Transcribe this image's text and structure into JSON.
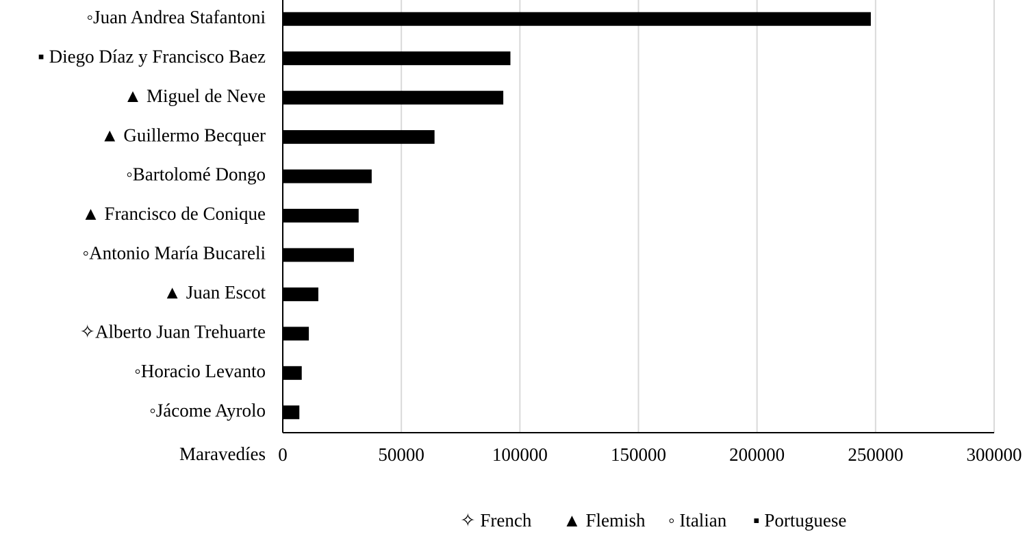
{
  "chart_data": {
    "type": "barh",
    "categories": [
      "◦Juan Andrea Stafantoni",
      "▪ Diego Díaz y Francisco Baez",
      "▲ Miguel de Neve",
      "▲ Guillermo Becquer",
      "◦Bartolomé Dongo",
      "▲ Francisco de Conique",
      "◦Antonio María Bucareli",
      "▲ Juan Escot",
      "✧Alberto Juan Trehuarte",
      "◦Horacio Levanto",
      "◦Jácome Ayrolo"
    ],
    "values": [
      248000,
      96000,
      93000,
      64000,
      37500,
      32000,
      30000,
      15000,
      11000,
      8000,
      7000
    ],
    "color": "#000000",
    "x_label": "Maravedíes",
    "xlim": [
      0,
      300000
    ],
    "xticks": [
      0,
      50000,
      100000,
      150000,
      200000,
      250000,
      300000
    ],
    "grid": true,
    "legend": [
      "✧ French",
      "▲ Flemish",
      "◦ Italian",
      "▪ Portuguese"
    ]
  }
}
